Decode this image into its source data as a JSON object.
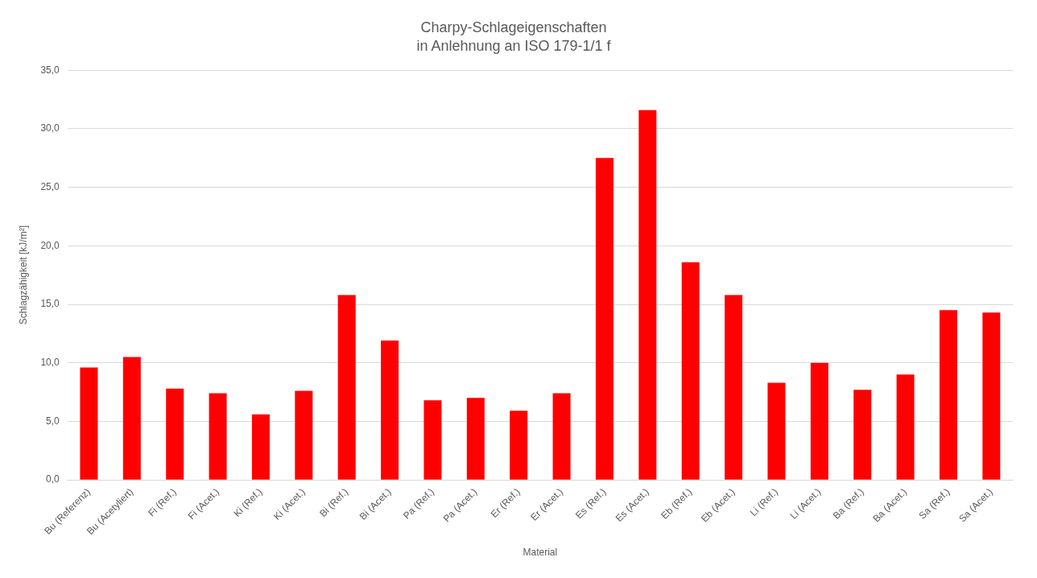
{
  "chart_data": {
    "type": "bar",
    "title": "Charpy-Schlageigenschaften",
    "subtitle": "in Anlehnung an ISO 179-1/1 f",
    "xlabel": "Material",
    "ylabel": "Schlagzähigkeit [kJ/m²]",
    "categories": [
      "Bu (Referenz)",
      "Bu (Acetyliert)",
      "Fi (Ref.)",
      "Fi (Acet.)",
      "Ki (Ref.)",
      "Ki (Acet.)",
      "Bi (Ref.)",
      "Bi (Acet.)",
      "Pa (Ref.)",
      "Pa (Acet.)",
      "Er (Ref.)",
      "Er (Acet.)",
      "Es (Ref.)",
      "Es (Acet.)",
      "Eb (Ref.)",
      "Eb (Acet.)",
      "Li (Ref.)",
      "Li (Acet.)",
      "Ba (Ref.)",
      "Ba (Acet.)",
      "Sa (Ref.)",
      "Sa (Acet.)"
    ],
    "values": [
      9.6,
      10.5,
      7.8,
      7.4,
      5.6,
      7.6,
      15.8,
      11.9,
      6.8,
      7.0,
      5.9,
      7.4,
      27.5,
      31.6,
      18.6,
      15.8,
      8.3,
      10.0,
      7.7,
      9.0,
      14.5,
      14.3
    ],
    "color": "#ff0000",
    "ylim": [
      0,
      35
    ],
    "yticks": [
      {
        "value": 0,
        "label": "0,0"
      },
      {
        "value": 5,
        "label": "5,0"
      },
      {
        "value": 10,
        "label": "10,0"
      },
      {
        "value": 15,
        "label": "15,0"
      },
      {
        "value": 20,
        "label": "20,0"
      },
      {
        "value": 25,
        "label": "25,0"
      },
      {
        "value": 30,
        "label": "30,0"
      },
      {
        "value": 35,
        "label": "35,0"
      }
    ],
    "grid": "y",
    "legend": false
  }
}
